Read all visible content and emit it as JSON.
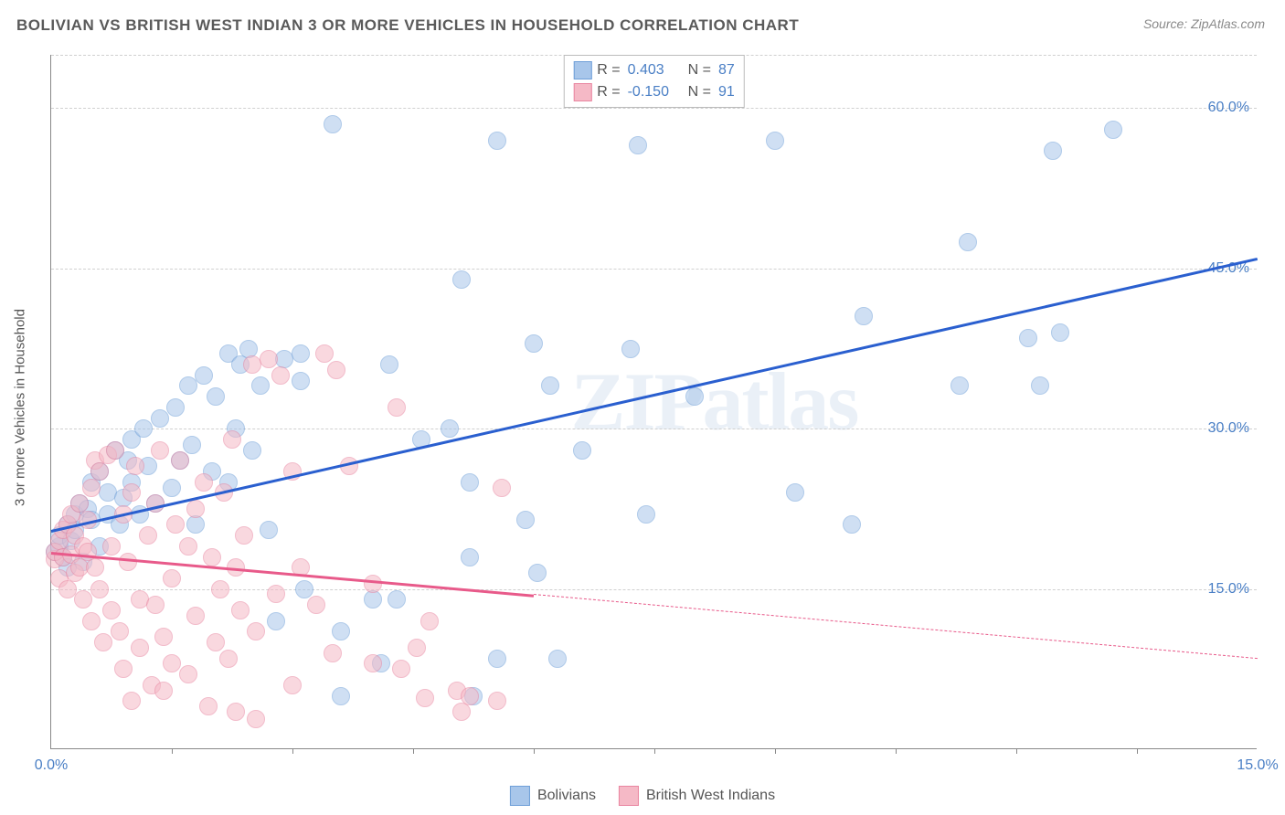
{
  "title": "BOLIVIAN VS BRITISH WEST INDIAN 3 OR MORE VEHICLES IN HOUSEHOLD CORRELATION CHART",
  "source": "Source: ZipAtlas.com",
  "ylabel": "3 or more Vehicles in Household",
  "watermark": "ZIPatlas",
  "colors": {
    "blue_fill": "#a8c6ea",
    "blue_stroke": "#6f9fd8",
    "pink_fill": "#f5b9c6",
    "pink_stroke": "#e985a0",
    "blue_line": "#2a5fcf",
    "pink_line": "#e85a8a",
    "grid": "#d0d0d0",
    "axis_text": "#4a7fc5",
    "title_text": "#5a5a5a"
  },
  "chart": {
    "type": "scatter",
    "xlim": [
      0,
      15
    ],
    "ylim": [
      0,
      65
    ],
    "yticks": [
      {
        "v": 15,
        "label": "15.0%"
      },
      {
        "v": 30,
        "label": "30.0%"
      },
      {
        "v": 45,
        "label": "45.0%"
      },
      {
        "v": 60,
        "label": "60.0%"
      }
    ],
    "xticks_label": [
      {
        "v": 0,
        "label": "0.0%"
      },
      {
        "v": 15,
        "label": "15.0%"
      }
    ],
    "xticks_minor": [
      1.5,
      3,
      4.5,
      6,
      7.5,
      9,
      10.5,
      12,
      13.5
    ],
    "point_radius": 10,
    "point_opacity": 0.55,
    "series": [
      {
        "name": "Bolivians",
        "color_fill": "#a8c6ea",
        "color_stroke": "#6f9fd8",
        "r": 0.403,
        "n": 87,
        "trend": {
          "x1": 0,
          "y1": 20.5,
          "x2": 15,
          "y2": 46,
          "style": "solid",
          "width": 3
        },
        "points": [
          [
            0.05,
            18.5
          ],
          [
            0.1,
            19
          ],
          [
            0.1,
            20
          ],
          [
            0.15,
            18
          ],
          [
            0.2,
            21
          ],
          [
            0.2,
            17
          ],
          [
            0.25,
            19.5
          ],
          [
            0.3,
            22
          ],
          [
            0.3,
            20.5
          ],
          [
            0.35,
            23
          ],
          [
            0.4,
            17.5
          ],
          [
            0.45,
            22.5
          ],
          [
            0.5,
            25
          ],
          [
            0.5,
            21.5
          ],
          [
            0.6,
            19
          ],
          [
            0.6,
            26
          ],
          [
            0.7,
            24
          ],
          [
            0.7,
            22
          ],
          [
            0.8,
            28
          ],
          [
            0.85,
            21
          ],
          [
            0.9,
            23.5
          ],
          [
            0.95,
            27
          ],
          [
            1.0,
            29
          ],
          [
            1.0,
            25
          ],
          [
            1.1,
            22
          ],
          [
            1.15,
            30
          ],
          [
            1.2,
            26.5
          ],
          [
            1.3,
            23
          ],
          [
            1.35,
            31
          ],
          [
            1.5,
            24.5
          ],
          [
            1.55,
            32
          ],
          [
            1.6,
            27
          ],
          [
            1.7,
            34
          ],
          [
            1.75,
            28.5
          ],
          [
            1.8,
            21
          ],
          [
            1.9,
            35
          ],
          [
            2.0,
            26
          ],
          [
            2.05,
            33
          ],
          [
            2.2,
            37
          ],
          [
            2.2,
            25
          ],
          [
            2.3,
            30
          ],
          [
            2.35,
            36
          ],
          [
            2.45,
            37.5
          ],
          [
            2.5,
            28
          ],
          [
            2.6,
            34
          ],
          [
            2.7,
            20.5
          ],
          [
            2.8,
            12
          ],
          [
            2.9,
            36.5
          ],
          [
            3.1,
            34.5
          ],
          [
            3.1,
            37
          ],
          [
            3.15,
            15
          ],
          [
            3.5,
            58.5
          ],
          [
            3.6,
            11
          ],
          [
            3.6,
            5
          ],
          [
            4.0,
            14
          ],
          [
            4.1,
            8
          ],
          [
            4.2,
            36
          ],
          [
            4.3,
            14
          ],
          [
            4.6,
            29
          ],
          [
            4.95,
            30
          ],
          [
            5.1,
            44
          ],
          [
            5.2,
            25
          ],
          [
            5.2,
            18
          ],
          [
            5.25,
            5
          ],
          [
            5.55,
            57
          ],
          [
            5.55,
            8.5
          ],
          [
            5.9,
            21.5
          ],
          [
            6.0,
            38
          ],
          [
            6.05,
            16.5
          ],
          [
            6.2,
            34
          ],
          [
            6.3,
            8.5
          ],
          [
            6.6,
            28
          ],
          [
            7.2,
            37.5
          ],
          [
            7.3,
            56.5
          ],
          [
            7.4,
            22
          ],
          [
            8.0,
            33
          ],
          [
            9.0,
            57
          ],
          [
            9.25,
            24
          ],
          [
            9.95,
            21
          ],
          [
            10.1,
            40.5
          ],
          [
            11.3,
            34
          ],
          [
            11.4,
            47.5
          ],
          [
            12.15,
            38.5
          ],
          [
            12.3,
            34
          ],
          [
            12.45,
            56
          ],
          [
            12.55,
            39
          ],
          [
            13.2,
            58
          ]
        ]
      },
      {
        "name": "British West Indians",
        "color_fill": "#f5b9c6",
        "color_stroke": "#e985a0",
        "r": -0.15,
        "n": 91,
        "trend": {
          "x1": 0,
          "y1": 18.5,
          "x2": 6,
          "y2": 14.5,
          "style": "solid",
          "width": 3
        },
        "trend_ext": {
          "x1": 6,
          "y1": 14.5,
          "x2": 15,
          "y2": 8.5,
          "style": "dashed",
          "width": 1
        },
        "points": [
          [
            0.05,
            17.8
          ],
          [
            0.05,
            18.5
          ],
          [
            0.1,
            16
          ],
          [
            0.1,
            19.5
          ],
          [
            0.15,
            18
          ],
          [
            0.15,
            20.5
          ],
          [
            0.2,
            21
          ],
          [
            0.2,
            15
          ],
          [
            0.25,
            18.2
          ],
          [
            0.25,
            22
          ],
          [
            0.3,
            16.5
          ],
          [
            0.3,
            20
          ],
          [
            0.35,
            17
          ],
          [
            0.35,
            23
          ],
          [
            0.4,
            14
          ],
          [
            0.4,
            19
          ],
          [
            0.45,
            21.5
          ],
          [
            0.45,
            18.5
          ],
          [
            0.5,
            12
          ],
          [
            0.5,
            24.5
          ],
          [
            0.55,
            17
          ],
          [
            0.55,
            27
          ],
          [
            0.6,
            26
          ],
          [
            0.6,
            15
          ],
          [
            0.65,
            10
          ],
          [
            0.7,
            27.5
          ],
          [
            0.75,
            19
          ],
          [
            0.75,
            13
          ],
          [
            0.8,
            28
          ],
          [
            0.85,
            11
          ],
          [
            0.9,
            22
          ],
          [
            0.9,
            7.5
          ],
          [
            0.95,
            17.5
          ],
          [
            1.0,
            4.5
          ],
          [
            1.0,
            24
          ],
          [
            1.05,
            26.5
          ],
          [
            1.1,
            14
          ],
          [
            1.1,
            9.5
          ],
          [
            1.2,
            20
          ],
          [
            1.25,
            6
          ],
          [
            1.3,
            23
          ],
          [
            1.3,
            13.5
          ],
          [
            1.35,
            28
          ],
          [
            1.4,
            10.5
          ],
          [
            1.4,
            5.5
          ],
          [
            1.5,
            8
          ],
          [
            1.5,
            16
          ],
          [
            1.55,
            21
          ],
          [
            1.6,
            27
          ],
          [
            1.7,
            19
          ],
          [
            1.7,
            7
          ],
          [
            1.8,
            22.5
          ],
          [
            1.8,
            12.5
          ],
          [
            1.9,
            25
          ],
          [
            1.95,
            4
          ],
          [
            2.0,
            18
          ],
          [
            2.05,
            10
          ],
          [
            2.1,
            15
          ],
          [
            2.15,
            24
          ],
          [
            2.2,
            8.5
          ],
          [
            2.25,
            29
          ],
          [
            2.3,
            3.5
          ],
          [
            2.3,
            17
          ],
          [
            2.35,
            13
          ],
          [
            2.4,
            20
          ],
          [
            2.5,
            36
          ],
          [
            2.55,
            11
          ],
          [
            2.55,
            2.8
          ],
          [
            2.7,
            36.5
          ],
          [
            2.8,
            14.5
          ],
          [
            2.85,
            35
          ],
          [
            3.0,
            6
          ],
          [
            3.0,
            26
          ],
          [
            3.1,
            17
          ],
          [
            3.3,
            13.5
          ],
          [
            3.4,
            37
          ],
          [
            3.5,
            9
          ],
          [
            3.55,
            35.5
          ],
          [
            3.7,
            26.5
          ],
          [
            4.0,
            15.5
          ],
          [
            4.0,
            8
          ],
          [
            4.3,
            32
          ],
          [
            4.35,
            7.5
          ],
          [
            4.55,
            9.5
          ],
          [
            4.65,
            4.8
          ],
          [
            4.7,
            12
          ],
          [
            5.05,
            5.5
          ],
          [
            5.1,
            3.5
          ],
          [
            5.2,
            5
          ],
          [
            5.55,
            4.5
          ],
          [
            5.6,
            24.5
          ]
        ]
      }
    ]
  },
  "legend_top": [
    {
      "swatch_fill": "#a8c6ea",
      "swatch_stroke": "#6f9fd8",
      "r_label": "R =",
      "r_val": "0.403",
      "n_label": "N =",
      "n_val": "87"
    },
    {
      "swatch_fill": "#f5b9c6",
      "swatch_stroke": "#e985a0",
      "r_label": "R =",
      "r_val": "-0.150",
      "n_label": "N =",
      "n_val": "91"
    }
  ],
  "legend_bottom": [
    {
      "swatch_fill": "#a8c6ea",
      "swatch_stroke": "#6f9fd8",
      "label": "Bolivians"
    },
    {
      "swatch_fill": "#f5b9c6",
      "swatch_stroke": "#e985a0",
      "label": "British West Indians"
    }
  ]
}
